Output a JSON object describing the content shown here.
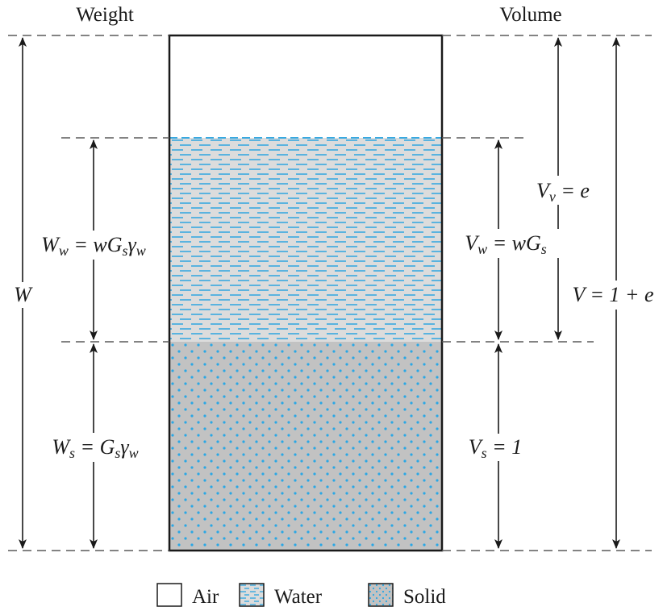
{
  "headers": {
    "weight": "Weight",
    "volume": "Volume"
  },
  "colors": {
    "water_fill": "#dcdcdc",
    "water_dash": "#39a9e0",
    "solid_fill": "#c2c2c2",
    "solid_dot": "#2aa7e5",
    "line": "#1a1a1a",
    "dashed": "#5a5a5a"
  },
  "phases": {
    "air": "Air",
    "water": "Water",
    "solid": "Solid"
  },
  "labels": {
    "total_weight": {
      "main": "W",
      "text": "W"
    },
    "water_weight": {
      "main": "W",
      "sub": "w",
      "rhs_a": " = wG",
      "rhs_sub1": "s",
      "rhs_b": "γ",
      "rhs_sub2": "w",
      "text": "W_w = wG_sγ_w"
    },
    "solid_weight": {
      "main": "W",
      "sub": "s",
      "rhs_a": " = G",
      "rhs_sub1": "s",
      "rhs_b": "γ",
      "rhs_sub2": "w",
      "text": "W_s = G_sγ_w"
    },
    "void_volume": {
      "main": "V",
      "sub": "v",
      "rhs": " = e",
      "text": "V_v = e"
    },
    "water_volume": {
      "main": "V",
      "sub": "w",
      "rhs_a": " = wG",
      "rhs_sub1": "s",
      "text": "V_w = wG_s"
    },
    "total_volume": {
      "rhs": "V = 1 + e",
      "text": "V = 1 + e"
    },
    "solid_volume": {
      "main": "V",
      "sub": "s",
      "rhs": " = 1",
      "text": "V_s = 1"
    }
  },
  "legend": [
    {
      "label": "Air",
      "icon": "air-swatch"
    },
    {
      "label": "Water",
      "icon": "water-swatch"
    },
    {
      "label": "Solid",
      "icon": "solid-swatch"
    }
  ]
}
